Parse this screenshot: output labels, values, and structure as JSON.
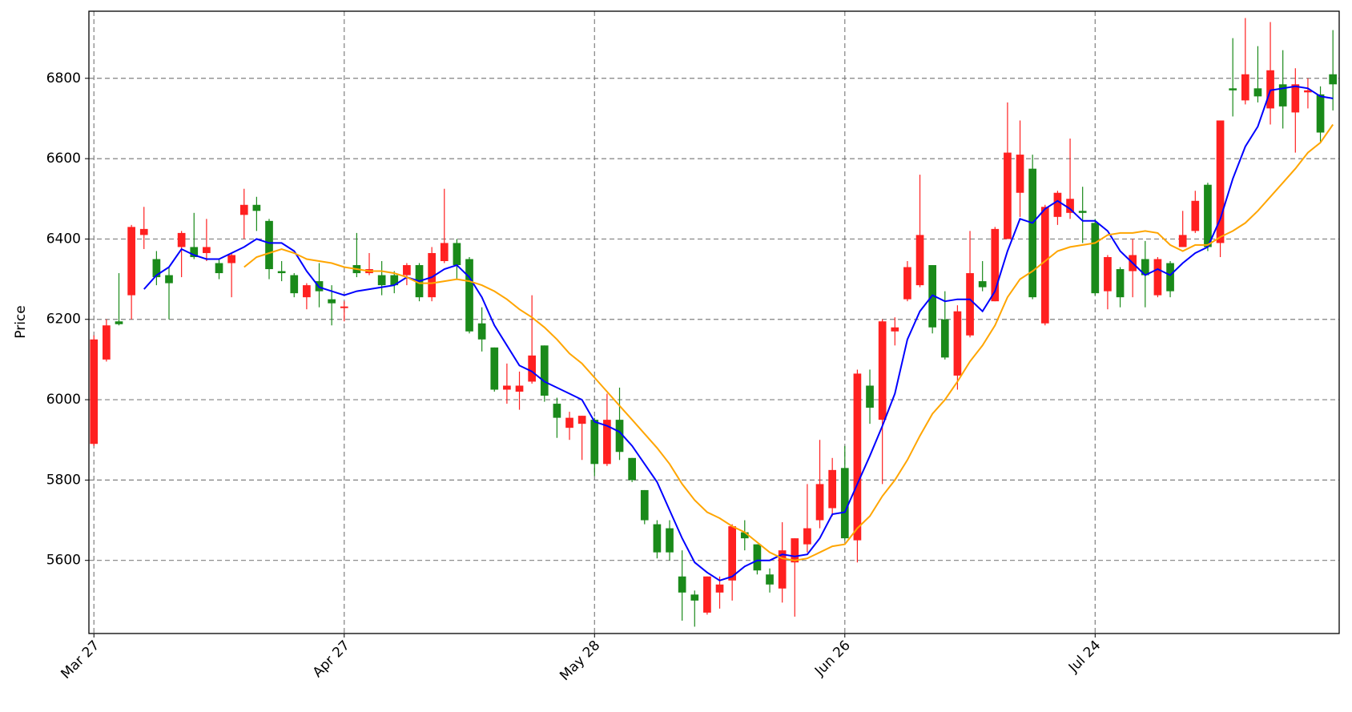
{
  "chart_data": {
    "type": "candlestick",
    "ylabel": "Price",
    "categories": [
      "Mar 27",
      null,
      null,
      null,
      null,
      null,
      null,
      null,
      null,
      null,
      null,
      null,
      null,
      null,
      null,
      null,
      null,
      null,
      null,
      null,
      "Apr 27",
      null,
      null,
      null,
      null,
      null,
      null,
      null,
      null,
      null,
      null,
      null,
      null,
      null,
      null,
      null,
      null,
      null,
      null,
      null,
      "May 28",
      null,
      null,
      null,
      null,
      null,
      null,
      null,
      null,
      null,
      null,
      null,
      null,
      null,
      null,
      null,
      null,
      null,
      null,
      null,
      "Jun 26",
      null,
      null,
      null,
      null,
      null,
      null,
      null,
      null,
      null,
      null,
      null,
      null,
      null,
      null,
      null,
      null,
      null,
      null,
      null,
      "Jul 24",
      null,
      null,
      null,
      null,
      null,
      null,
      null,
      null,
      null,
      null,
      null,
      null,
      null,
      null,
      null,
      null,
      null,
      null,
      null
    ],
    "open": [
      5890,
      6100,
      6195,
      6260,
      6410,
      6350,
      6310,
      6380,
      6380,
      6365,
      6340,
      6340,
      6460,
      6485,
      6445,
      6320,
      6310,
      6255,
      6295,
      6250,
      6228,
      6335,
      6315,
      6310,
      6310,
      6310,
      6335,
      6255,
      6345,
      6390,
      6350,
      6190,
      6130,
      6025,
      6020,
      6045,
      6135,
      5990,
      5930,
      5940,
      5950,
      5840,
      5950,
      5855,
      5775,
      5690,
      5680,
      5560,
      5515,
      5470,
      5520,
      5550,
      5670,
      5640,
      5565,
      5530,
      5595,
      5640,
      5700,
      5730,
      5830,
      5650,
      6035,
      5950,
      6170,
      6250,
      6285,
      6335,
      6200,
      6060,
      6160,
      6295,
      6245,
      6400,
      6515,
      6575,
      6190,
      6455,
      6465,
      6470,
      6440,
      6270,
      6325,
      6320,
      6350,
      6260,
      6340,
      6380,
      6420,
      6535,
      6390,
      6775,
      6745,
      6775,
      6725,
      6785,
      6715,
      6765,
      6760,
      6810
    ],
    "high": [
      6160,
      6200,
      6315,
      6435,
      6480,
      6370,
      6330,
      6420,
      6465,
      6450,
      6350,
      6365,
      6525,
      6505,
      6450,
      6345,
      6315,
      6290,
      6340,
      6285,
      6245,
      6415,
      6365,
      6345,
      6320,
      6340,
      6340,
      6380,
      6525,
      6400,
      6355,
      6230,
      6130,
      6090,
      6070,
      6260,
      6135,
      6005,
      5970,
      5960,
      5955,
      6015,
      6030,
      5855,
      5775,
      5700,
      5700,
      5625,
      5525,
      5560,
      5560,
      5690,
      5700,
      5640,
      5580,
      5695,
      5655,
      5790,
      5900,
      5855,
      5885,
      6075,
      6075,
      6200,
      6205,
      6345,
      6560,
      6335,
      6270,
      6235,
      6420,
      6345,
      6430,
      6740,
      6695,
      6610,
      6485,
      6520,
      6650,
      6530,
      6450,
      6360,
      6330,
      6400,
      6395,
      6355,
      6345,
      6470,
      6520,
      6540,
      6695,
      6900,
      6950,
      6880,
      6940,
      6870,
      6825,
      6800,
      6780,
      6920
    ],
    "low": [
      5885,
      6095,
      6185,
      6200,
      6375,
      6285,
      6200,
      6305,
      6350,
      6345,
      6300,
      6255,
      6400,
      6420,
      6300,
      6295,
      6255,
      6225,
      6230,
      6185,
      6195,
      6305,
      6310,
      6260,
      6265,
      6285,
      6245,
      6245,
      6340,
      6300,
      6165,
      6120,
      6020,
      5990,
      5975,
      6040,
      5995,
      5905,
      5900,
      5850,
      5810,
      5835,
      5850,
      5795,
      5690,
      5605,
      5600,
      5450,
      5435,
      5465,
      5480,
      5500,
      5625,
      5565,
      5520,
      5495,
      5460,
      5620,
      5680,
      5710,
      5650,
      5595,
      5940,
      5790,
      6135,
      6245,
      6280,
      6165,
      6100,
      6025,
      6155,
      6270,
      6245,
      6400,
      6455,
      6250,
      6185,
      6435,
      6450,
      6390,
      6260,
      6225,
      6230,
      6255,
      6230,
      6255,
      6255,
      6380,
      6415,
      6370,
      6355,
      6705,
      6735,
      6740,
      6685,
      6675,
      6615,
      6725,
      6640,
      6720
    ],
    "close": [
      6150,
      6185,
      6188,
      6430,
      6425,
      6305,
      6290,
      6415,
      6355,
      6380,
      6315,
      6360,
      6485,
      6470,
      6325,
      6315,
      6265,
      6285,
      6270,
      6240,
      6232,
      6315,
      6325,
      6285,
      6285,
      6335,
      6255,
      6365,
      6390,
      6335,
      6170,
      6150,
      6025,
      6035,
      6035,
      6110,
      6010,
      5955,
      5955,
      5960,
      5840,
      5950,
      5870,
      5800,
      5700,
      5620,
      5620,
      5520,
      5500,
      5560,
      5540,
      5685,
      5655,
      5575,
      5540,
      5625,
      5655,
      5680,
      5790,
      5825,
      5655,
      6065,
      5980,
      6195,
      6180,
      6330,
      6410,
      6180,
      6105,
      6220,
      6315,
      6280,
      6425,
      6615,
      6610,
      6255,
      6480,
      6515,
      6500,
      6465,
      6265,
      6355,
      6255,
      6360,
      6310,
      6350,
      6270,
      6410,
      6495,
      6380,
      6695,
      6770,
      6810,
      6755,
      6820,
      6730,
      6785,
      6770,
      6665,
      6785
    ],
    "up_color": "#ff2020",
    "down_color": "#1a8a1a",
    "lines": [
      {
        "color": "#0000ff",
        "values": [
          null,
          null,
          null,
          null,
          6275,
          6310,
          6330,
          6375,
          6360,
          6350,
          6350,
          6365,
          6380,
          6400,
          6390,
          6390,
          6370,
          6320,
          6280,
          6270,
          6260,
          6270,
          6275,
          6280,
          6285,
          6305,
          6295,
          6305,
          6325,
          6335,
          6305,
          6255,
          6185,
          6135,
          6085,
          6070,
          6045,
          6030,
          6015,
          6000,
          5945,
          5935,
          5920,
          5885,
          5840,
          5795,
          5725,
          5655,
          5595,
          5570,
          5550,
          5560,
          5585,
          5600,
          5600,
          5615,
          5610,
          5615,
          5655,
          5715,
          5720,
          5790,
          5860,
          5935,
          6015,
          6150,
          6220,
          6260,
          6245,
          6250,
          6250,
          6220,
          6270,
          6370,
          6450,
          6440,
          6475,
          6495,
          6475,
          6445,
          6445,
          6420,
          6370,
          6340,
          6310,
          6325,
          6310,
          6340,
          6365,
          6380,
          6450,
          6550,
          6630,
          6680,
          6770,
          6775,
          6780,
          6775,
          6755,
          6750
        ]
      },
      {
        "color": "#ffa500",
        "values": [
          null,
          null,
          null,
          null,
          null,
          null,
          null,
          null,
          null,
          null,
          null,
          null,
          6330,
          6355,
          6365,
          6375,
          6365,
          6350,
          6345,
          6340,
          6330,
          6325,
          6320,
          6320,
          6315,
          6305,
          6290,
          6290,
          6295,
          6300,
          6295,
          6285,
          6270,
          6250,
          6225,
          6205,
          6180,
          6150,
          6115,
          6090,
          6055,
          6020,
          5985,
          5950,
          5915,
          5880,
          5840,
          5790,
          5750,
          5720,
          5705,
          5685,
          5670,
          5645,
          5620,
          5605,
          5600,
          5605,
          5620,
          5635,
          5640,
          5680,
          5710,
          5760,
          5800,
          5850,
          5910,
          5965,
          6000,
          6045,
          6095,
          6135,
          6185,
          6255,
          6300,
          6320,
          6345,
          6370,
          6380,
          6385,
          6390,
          6410,
          6415,
          6415,
          6420,
          6415,
          6385,
          6370,
          6385,
          6385,
          6405,
          6420,
          6440,
          6470,
          6505,
          6540,
          6575,
          6615,
          6640,
          6685
        ]
      }
    ],
    "ylim": [
      5418,
      6967
    ],
    "yticks": [
      5600,
      5800,
      6000,
      6200,
      6400,
      6600,
      6800
    ],
    "grid": true
  }
}
